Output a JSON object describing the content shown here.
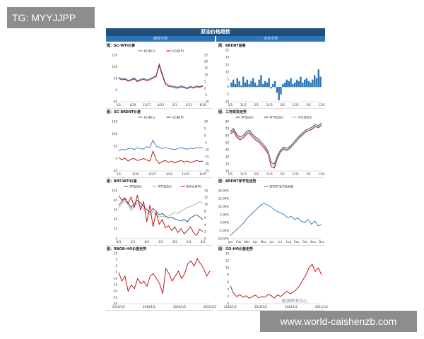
{
  "overlay": {
    "tg": "TG: MYYJJPP",
    "watermark": "www.world-caishenzb.com"
  },
  "report": {
    "title": "原油价格趋势",
    "left_header": "期货市场",
    "right_header": "现货市场",
    "stamp": "能源研发中心"
  },
  "colors": {
    "header": "#1f4e79",
    "subheader": "#2e75b6",
    "blue": "#2e75b6",
    "red": "#c00000",
    "gray": "#a6a6a6",
    "navy": "#1f4e79"
  },
  "chart_data": [
    {
      "id": "p1",
      "type": "line",
      "title": "图：SC-WTI价差",
      "x_ticks": [
        "1/1",
        "4/29",
        "11/17",
        "4/23",
        "6/1",
        "5/11",
        "8/18"
      ],
      "y_left_ticks": [
        "150",
        "100",
        "50",
        "0",
        "-50"
      ],
      "y_right_ticks": [
        "25",
        "20",
        "15",
        "10",
        "5",
        "0",
        "-5",
        "-10"
      ],
      "legend": [
        "$价差(L)",
        "$价差(R)"
      ],
      "series": [
        {
          "axis": "left",
          "color": "#2e75b6",
          "values": [
            55,
            48,
            50,
            42,
            45,
            52,
            40,
            46,
            50,
            44,
            48,
            55,
            62,
            112,
            70,
            30,
            22,
            18,
            15,
            12,
            18,
            14,
            10,
            16,
            12,
            18,
            15,
            20
          ]
        },
        {
          "axis": "left",
          "color": "#c00000",
          "values": [
            50,
            44,
            46,
            38,
            42,
            48,
            36,
            42,
            46,
            40,
            44,
            52,
            58,
            105,
            62,
            24,
            16,
            14,
            10,
            8,
            14,
            10,
            6,
            12,
            8,
            14,
            12,
            16
          ]
        }
      ],
      "ylim": [
        -50,
        150
      ]
    },
    {
      "id": "p2",
      "type": "bar",
      "title": "图：BRENT基差",
      "x_ticks": [
        "5/5",
        "11/5",
        "5/5",
        "11/5",
        "5/5",
        "11/5",
        "5/5",
        "11/5"
      ],
      "y_ticks": [
        "25",
        "20",
        "15",
        "10",
        "5",
        "0",
        "-5",
        "-10"
      ],
      "ylim": [
        -10,
        25
      ],
      "values": [
        3,
        5,
        2,
        6,
        4,
        1,
        7,
        3,
        5,
        2,
        4,
        6,
        3,
        1,
        5,
        8,
        2,
        4,
        3,
        6,
        -1,
        2,
        4,
        -4,
        -9,
        -5,
        2,
        3,
        5,
        4,
        6,
        2,
        3,
        5,
        4,
        7,
        3,
        5,
        6,
        4,
        3,
        5,
        8,
        6,
        12,
        7
      ]
    },
    {
      "id": "p3",
      "type": "line",
      "title": "图：SC-BRENT价差",
      "x_ticks": [
        "1/1",
        "4/30",
        "12/27",
        "4/24",
        "12/21",
        "6/19"
      ],
      "y_left_ticks": [
        "150",
        "100",
        "50",
        "0",
        "-50"
      ],
      "y_right_ticks": [
        "10",
        "5",
        "0",
        "-5",
        "-10",
        "-15",
        "-20",
        "-25"
      ],
      "legend": [
        "$价差(L)",
        "$价差(R)"
      ],
      "series": [
        {
          "axis": "left",
          "color": "#2e75b6",
          "values": [
            30,
            38,
            35,
            40,
            42,
            36,
            44,
            40,
            38,
            48,
            45,
            75,
            50,
            46,
            40,
            44,
            42,
            38,
            36,
            40,
            44,
            40,
            38,
            42,
            40,
            44,
            42,
            46
          ]
        },
        {
          "axis": "left",
          "color": "#c00000",
          "values": [
            5,
            -5,
            2,
            -10,
            -2,
            0,
            -8,
            -4,
            0,
            -6,
            -10,
            30,
            -4,
            -20,
            -12,
            -8,
            -16,
            -10,
            -18,
            -12,
            -8,
            -14,
            -10,
            -16,
            -12,
            -8,
            -12,
            -10
          ]
        }
      ],
      "ylim": [
        -50,
        150
      ]
    },
    {
      "id": "p4",
      "type": "line",
      "title": "图：三地现货走势",
      "x_ticks": [
        "5/5",
        "11/5",
        "5/5",
        "11/5",
        "5/5",
        "11/5",
        "5/5",
        "11/5"
      ],
      "y_ticks": [
        "80",
        "70",
        "60",
        "50",
        "40",
        "30",
        "20",
        "10"
      ],
      "ylim": [
        10,
        80
      ],
      "legend": [
        "BR现货价",
        "WTI现货价",
        "中东现货价"
      ],
      "series": [
        {
          "name": "BR现货价",
          "color": "#1f4e79",
          "values": [
            66,
            70,
            62,
            58,
            60,
            65,
            68,
            62,
            58,
            55,
            50,
            45,
            38,
            22,
            20,
            32,
            40,
            44,
            42,
            45,
            50,
            55,
            60,
            64,
            68,
            70,
            72,
            76,
            74,
            78
          ]
        },
        {
          "name": "WTI现货价",
          "color": "#c00000",
          "values": [
            62,
            66,
            58,
            54,
            56,
            61,
            64,
            58,
            54,
            51,
            46,
            41,
            34,
            16,
            14,
            28,
            37,
            41,
            39,
            42,
            47,
            52,
            57,
            61,
            65,
            67,
            69,
            73,
            71,
            75
          ]
        },
        {
          "name": "中东现货价",
          "color": "#a6a6a6",
          "values": [
            64,
            68,
            60,
            56,
            58,
            63,
            66,
            60,
            56,
            53,
            48,
            43,
            36,
            19,
            17,
            30,
            38,
            42,
            40,
            43,
            48,
            53,
            58,
            62,
            66,
            68,
            70,
            74,
            72,
            76
          ]
        }
      ]
    },
    {
      "id": "p5",
      "type": "line",
      "title": "图：BRT-WTI价差",
      "x_ticks": [
        "8/3",
        "2/3",
        "8/3",
        "2/3",
        "8/3",
        "2/3",
        "8/3"
      ],
      "y_left_ticks": [
        "105",
        "85",
        "65",
        "45",
        "25",
        "5"
      ],
      "y_right_ticks": [
        "14",
        "12",
        "10",
        "8",
        "6",
        "4",
        "2",
        "0"
      ],
      "legend": [
        "BR现货价",
        "WTI现货价",
        "两市价差(R)"
      ],
      "series": [
        {
          "axis": "left",
          "color": "#1f4e79",
          "values": [
            75,
            82,
            88,
            80,
            70,
            78,
            85,
            80,
            72,
            66,
            60,
            68,
            62,
            55,
            58,
            52,
            48,
            50,
            46,
            44,
            42,
            45,
            40,
            48,
            52,
            55,
            50,
            45
          ]
        },
        {
          "axis": "left",
          "color": "#a6a6a6",
          "values": [
            70,
            78,
            84,
            76,
            64,
            72,
            80,
            74,
            66,
            60,
            55,
            62,
            56,
            50,
            52,
            50,
            52,
            56,
            60,
            58,
            62,
            66,
            70,
            72,
            75,
            78,
            82,
            80
          ]
        },
        {
          "axis": "left",
          "color": "#c00000",
          "values": [
            95,
            85,
            90,
            78,
            92,
            70,
            96,
            65,
            82,
            40,
            75,
            30,
            60,
            35,
            45,
            28,
            32,
            22,
            30,
            18,
            26,
            15,
            22,
            30,
            18,
            12,
            25,
            20
          ]
        }
      ],
      "ylim": [
        5,
        105
      ]
    },
    {
      "id": "p6",
      "type": "line",
      "title": "图：BRENT季节性走势",
      "x_ticks": [
        "Jan",
        "Feb",
        "Mar",
        "Apr",
        "May",
        "Jun",
        "Jul",
        "Aug",
        "Sep",
        "Oct",
        "Nov",
        "Dec"
      ],
      "y_ticks": [
        "20.00%",
        "15.00%",
        "10.00%",
        "5.00%",
        "0.00%",
        "-5.00%",
        "-10.00%"
      ],
      "ylim": [
        -10,
        20
      ],
      "legend": [
        "BRENT季节性系数"
      ],
      "series": [
        {
          "name": "BRENT季节性系数",
          "color": "#2e75b6",
          "values": [
            -8,
            -6,
            -4,
            -2,
            0,
            3,
            5,
            7,
            9,
            11,
            12,
            11,
            10,
            8,
            7,
            6,
            5,
            3,
            4,
            2,
            3,
            1,
            0,
            2,
            -1,
            1,
            -2,
            -1
          ]
        }
      ]
    },
    {
      "id": "p7",
      "type": "line",
      "title": "图：RBOB-HO价差走势",
      "x_ticks": [
        "2016/1/2",
        "2018/1/2",
        "2020/1/2",
        "2021/1/2"
      ],
      "y_ticks": [
        "10",
        "5",
        "0",
        "-5",
        "-10",
        "-15",
        "-20",
        "-25",
        "-30"
      ],
      "ylim": [
        -30,
        10
      ],
      "series": [
        {
          "color": "#c00000",
          "values": [
            -5,
            -12,
            -8,
            -20,
            -15,
            -18,
            -10,
            -14,
            -12,
            -16,
            -8,
            -6,
            -10,
            -14,
            -22,
            -2,
            -6,
            -12,
            -8,
            -4,
            -10,
            -6,
            2,
            4,
            0,
            6,
            2,
            -2,
            -8,
            -4
          ]
        }
      ]
    },
    {
      "id": "p8",
      "type": "line",
      "title": "图：GO-HO价差走势",
      "x_ticks": [
        "2016/1/2",
        "2018/1/2",
        "2020/1/2",
        "2021/1/2"
      ],
      "y_ticks": [
        "14",
        "12",
        "10",
        "8",
        "6",
        "4",
        "2",
        "0"
      ],
      "ylim": [
        0,
        14
      ],
      "series": [
        {
          "color": "#c00000",
          "values": [
            5,
            3,
            2,
            2.5,
            1.8,
            2.2,
            1.5,
            2,
            2.4,
            1.6,
            2,
            1.8,
            2.6,
            2.2,
            1.6,
            2.4,
            2,
            2.8,
            3.5,
            2.8,
            3.2,
            4,
            5,
            6.5,
            8,
            10,
            11,
            9,
            10,
            8
          ]
        }
      ]
    }
  ]
}
